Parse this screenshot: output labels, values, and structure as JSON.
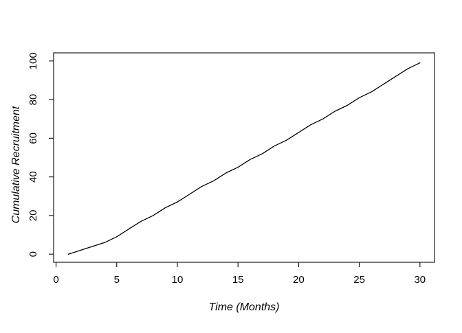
{
  "figure": {
    "background": "#ffffff",
    "line_color": "#000000",
    "axis_color": "#1a1a1a"
  },
  "chart_data": {
    "type": "line",
    "title": "",
    "xlabel": "Time (Months)",
    "ylabel": "Cumulative Recruitment",
    "x": [
      1,
      2,
      3,
      4,
      5,
      6,
      7,
      8,
      9,
      10,
      11,
      12,
      13,
      14,
      15,
      16,
      17,
      18,
      19,
      20,
      21,
      22,
      23,
      24,
      25,
      26,
      27,
      28,
      29,
      30
    ],
    "y": [
      0,
      2,
      4,
      6,
      9,
      13,
      17,
      20,
      24,
      27,
      31,
      35,
      38,
      42,
      45,
      49,
      52,
      56,
      59,
      63,
      67,
      70,
      74,
      77,
      81,
      84,
      88,
      92,
      96,
      99
    ],
    "xticks": [
      0,
      5,
      10,
      15,
      20,
      25,
      30
    ],
    "yticks": [
      0,
      20,
      40,
      60,
      80,
      100
    ],
    "xlim": [
      -0.2,
      31.2
    ],
    "ylim": [
      -4.2,
      104.2
    ],
    "grid": false,
    "legend_position": "none"
  }
}
